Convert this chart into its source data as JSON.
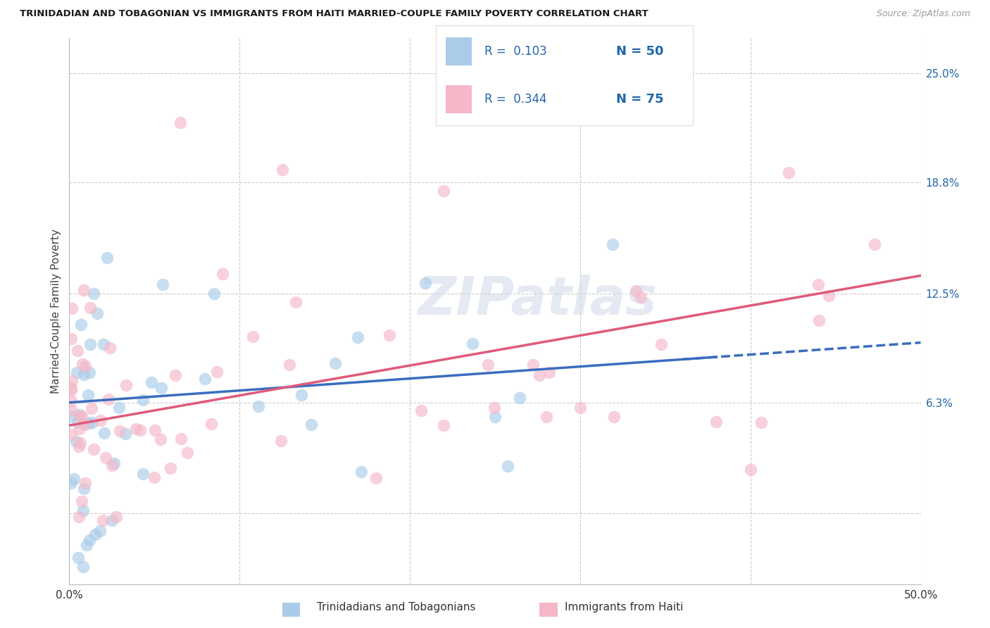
{
  "title": "TRINIDADIAN AND TOBAGONIAN VS IMMIGRANTS FROM HAITI MARRIED-COUPLE FAMILY POVERTY CORRELATION CHART",
  "source": "Source: ZipAtlas.com",
  "ylabel": "Married-Couple Family Poverty",
  "xlim": [
    0.0,
    0.5
  ],
  "ylim": [
    -0.04,
    0.27
  ],
  "x_ticks": [
    0.0,
    0.1,
    0.2,
    0.3,
    0.4,
    0.5
  ],
  "x_tick_labels": [
    "0.0%",
    "",
    "",
    "",
    "",
    "50.0%"
  ],
  "y_tick_right": [
    0.0,
    0.063,
    0.125,
    0.188,
    0.25
  ],
  "y_tick_right_labels": [
    "",
    "6.3%",
    "12.5%",
    "18.8%",
    "25.0%"
  ],
  "R_blue": 0.103,
  "N_blue": 50,
  "R_pink": 0.344,
  "N_pink": 75,
  "color_blue": "#aacce8",
  "color_pink": "#f4b8c8",
  "color_blue_line": "#3a6dbf",
  "color_pink_line": "#e05a7a",
  "color_blue_text": "#2166ac",
  "watermark": "ZIPatlas",
  "background_color": "#ffffff",
  "grid_color": "#cccccc",
  "legend_label1": "R =  0.103   N = 50",
  "legend_label2": "R =  0.344   N = 75",
  "bottom_label1": "Trinidadians and Tobagonians",
  "bottom_label2": "Immigrants from Haiti"
}
